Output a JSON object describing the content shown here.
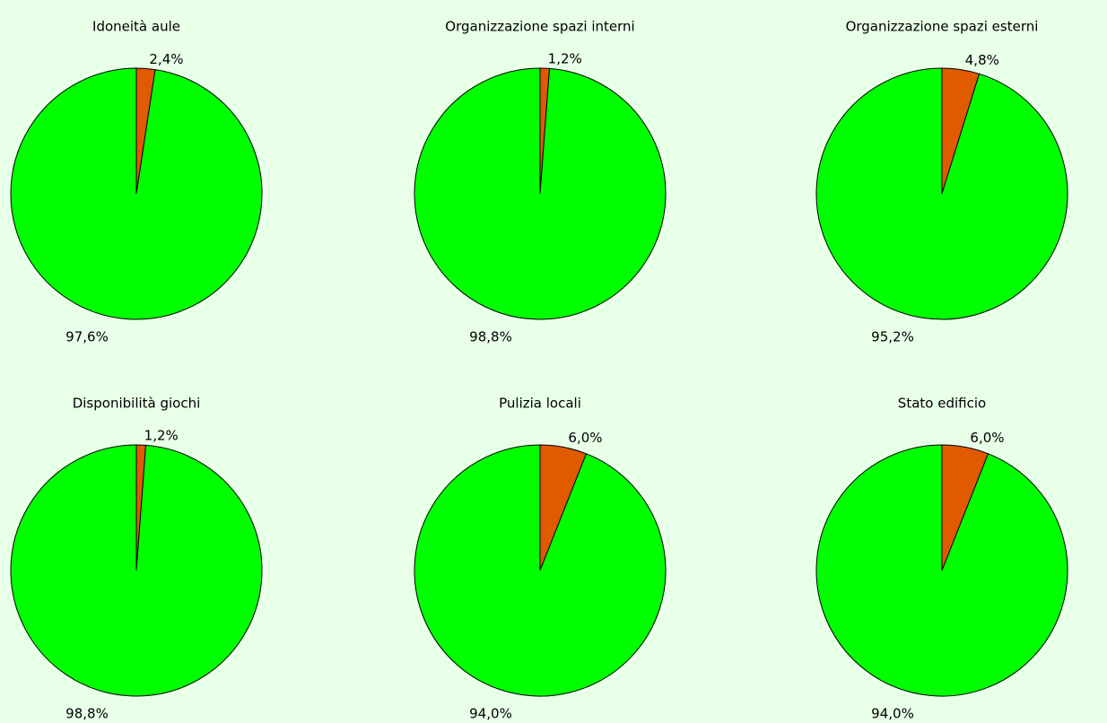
{
  "chart_data": [
    {
      "type": "pie",
      "title": "Idoneità aule",
      "values": [
        2.4,
        97.6
      ],
      "value_labels": [
        "2,4%",
        "97,6%"
      ],
      "colors": [
        "#e05a00",
        "#00ff00"
      ]
    },
    {
      "type": "pie",
      "title": "Organizzazione spazi interni",
      "values": [
        1.2,
        98.8
      ],
      "value_labels": [
        "1,2%",
        "98,8%"
      ],
      "colors": [
        "#e05a00",
        "#00ff00"
      ]
    },
    {
      "type": "pie",
      "title": "Organizzazione spazi esterni",
      "values": [
        4.8,
        95.2
      ],
      "value_labels": [
        "4,8%",
        "95,2%"
      ],
      "colors": [
        "#e05a00",
        "#00ff00"
      ]
    },
    {
      "type": "pie",
      "title": "Disponibilità giochi",
      "values": [
        1.2,
        98.8
      ],
      "value_labels": [
        "1,2%",
        "98,8%"
      ],
      "colors": [
        "#e05a00",
        "#00ff00"
      ]
    },
    {
      "type": "pie",
      "title": "Pulizia locali",
      "values": [
        6.0,
        94.0
      ],
      "value_labels": [
        "6,0%",
        "94,0%"
      ],
      "colors": [
        "#e05a00",
        "#00ff00"
      ]
    },
    {
      "type": "pie",
      "title": "Stato edificio",
      "values": [
        6.0,
        94.0
      ],
      "value_labels": [
        "6,0%",
        "94,0%"
      ],
      "colors": [
        "#e05a00",
        "#00ff00"
      ]
    }
  ]
}
